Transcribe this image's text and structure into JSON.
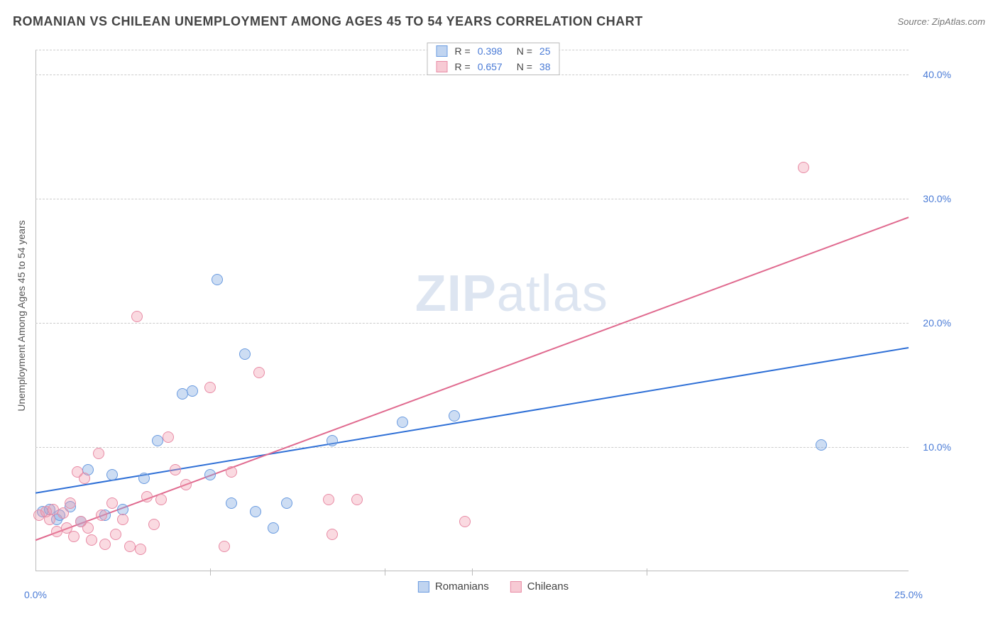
{
  "title": "ROMANIAN VS CHILEAN UNEMPLOYMENT AMONG AGES 45 TO 54 YEARS CORRELATION CHART",
  "source_label": "Source: ZipAtlas.com",
  "ylabel": "Unemployment Among Ages 45 to 54 years",
  "watermark_bold": "ZIP",
  "watermark_light": "atlas",
  "chart": {
    "type": "scatter",
    "background_color": "#ffffff",
    "grid_color": "#cccccc",
    "axis_color": "#bbbbbb",
    "tick_label_color": "#4a7bd6",
    "tick_fontsize": 14,
    "axis_label_color": "#555555",
    "axis_label_fontsize": 14,
    "xlim": [
      0,
      25
    ],
    "ylim": [
      0,
      42
    ],
    "x_ticks": [
      {
        "v": 0,
        "label": "0.0%"
      },
      {
        "v": 25,
        "label": "25.0%"
      }
    ],
    "y_ticks": [
      {
        "v": 10,
        "label": "10.0%"
      },
      {
        "v": 20,
        "label": "20.0%"
      },
      {
        "v": 30,
        "label": "30.0%"
      },
      {
        "v": 40,
        "label": "40.0%"
      }
    ],
    "x_tick_marks": [
      5,
      10,
      12.5,
      17.5
    ],
    "marker_radius": 8,
    "series": [
      {
        "name": "Romanians",
        "color_fill": "rgba(130,170,225,0.4)",
        "color_stroke": "#6a9be0",
        "class": "blue",
        "R": "0.398",
        "N": "25",
        "trend": {
          "x1": 0,
          "y1": 6.3,
          "x2": 25,
          "y2": 18.0,
          "stroke": "#2e6fd6",
          "width": 2
        },
        "points": [
          [
            0.2,
            4.8
          ],
          [
            0.4,
            5.0
          ],
          [
            0.6,
            4.2
          ],
          [
            0.7,
            4.5
          ],
          [
            1.0,
            5.2
          ],
          [
            1.3,
            4.0
          ],
          [
            1.5,
            8.2
          ],
          [
            2.0,
            4.5
          ],
          [
            2.2,
            7.8
          ],
          [
            2.5,
            5.0
          ],
          [
            3.1,
            7.5
          ],
          [
            3.5,
            10.5
          ],
          [
            4.2,
            14.3
          ],
          [
            4.5,
            14.5
          ],
          [
            5.2,
            23.5
          ],
          [
            5.0,
            7.8
          ],
          [
            5.6,
            5.5
          ],
          [
            6.0,
            17.5
          ],
          [
            6.3,
            4.8
          ],
          [
            6.8,
            3.5
          ],
          [
            7.2,
            5.5
          ],
          [
            8.5,
            10.5
          ],
          [
            10.5,
            12.0
          ],
          [
            12.0,
            12.5
          ],
          [
            22.5,
            10.2
          ]
        ]
      },
      {
        "name": "Chileans",
        "color_fill": "rgba(240,150,170,0.35)",
        "color_stroke": "#e88ba5",
        "class": "pink",
        "R": "0.657",
        "N": "38",
        "trend": {
          "x1": 0,
          "y1": 2.5,
          "x2": 25,
          "y2": 28.5,
          "stroke": "#e06a8f",
          "width": 2
        },
        "points": [
          [
            0.1,
            4.5
          ],
          [
            0.3,
            4.8
          ],
          [
            0.4,
            4.2
          ],
          [
            0.5,
            5.0
          ],
          [
            0.6,
            3.2
          ],
          [
            0.8,
            4.7
          ],
          [
            0.9,
            3.5
          ],
          [
            1.0,
            5.5
          ],
          [
            1.1,
            2.8
          ],
          [
            1.2,
            8.0
          ],
          [
            1.3,
            4.0
          ],
          [
            1.4,
            7.5
          ],
          [
            1.5,
            3.5
          ],
          [
            1.6,
            2.5
          ],
          [
            1.8,
            9.5
          ],
          [
            1.9,
            4.5
          ],
          [
            2.0,
            2.2
          ],
          [
            2.2,
            5.5
          ],
          [
            2.3,
            3.0
          ],
          [
            2.5,
            4.2
          ],
          [
            2.7,
            2.0
          ],
          [
            2.9,
            20.5
          ],
          [
            3.0,
            1.8
          ],
          [
            3.2,
            6.0
          ],
          [
            3.4,
            3.8
          ],
          [
            3.6,
            5.8
          ],
          [
            3.8,
            10.8
          ],
          [
            4.0,
            8.2
          ],
          [
            4.3,
            7.0
          ],
          [
            5.0,
            14.8
          ],
          [
            5.4,
            2.0
          ],
          [
            5.6,
            8.0
          ],
          [
            6.4,
            16.0
          ],
          [
            8.4,
            5.8
          ],
          [
            9.2,
            5.8
          ],
          [
            8.5,
            3.0
          ],
          [
            12.3,
            4.0
          ],
          [
            22.0,
            32.5
          ]
        ]
      }
    ],
    "legend_top_labels": {
      "R": "R =",
      "N": "N ="
    },
    "legend_bottom": [
      {
        "label": "Romanians",
        "class": "blue"
      },
      {
        "label": "Chileans",
        "class": "pink"
      }
    ]
  }
}
